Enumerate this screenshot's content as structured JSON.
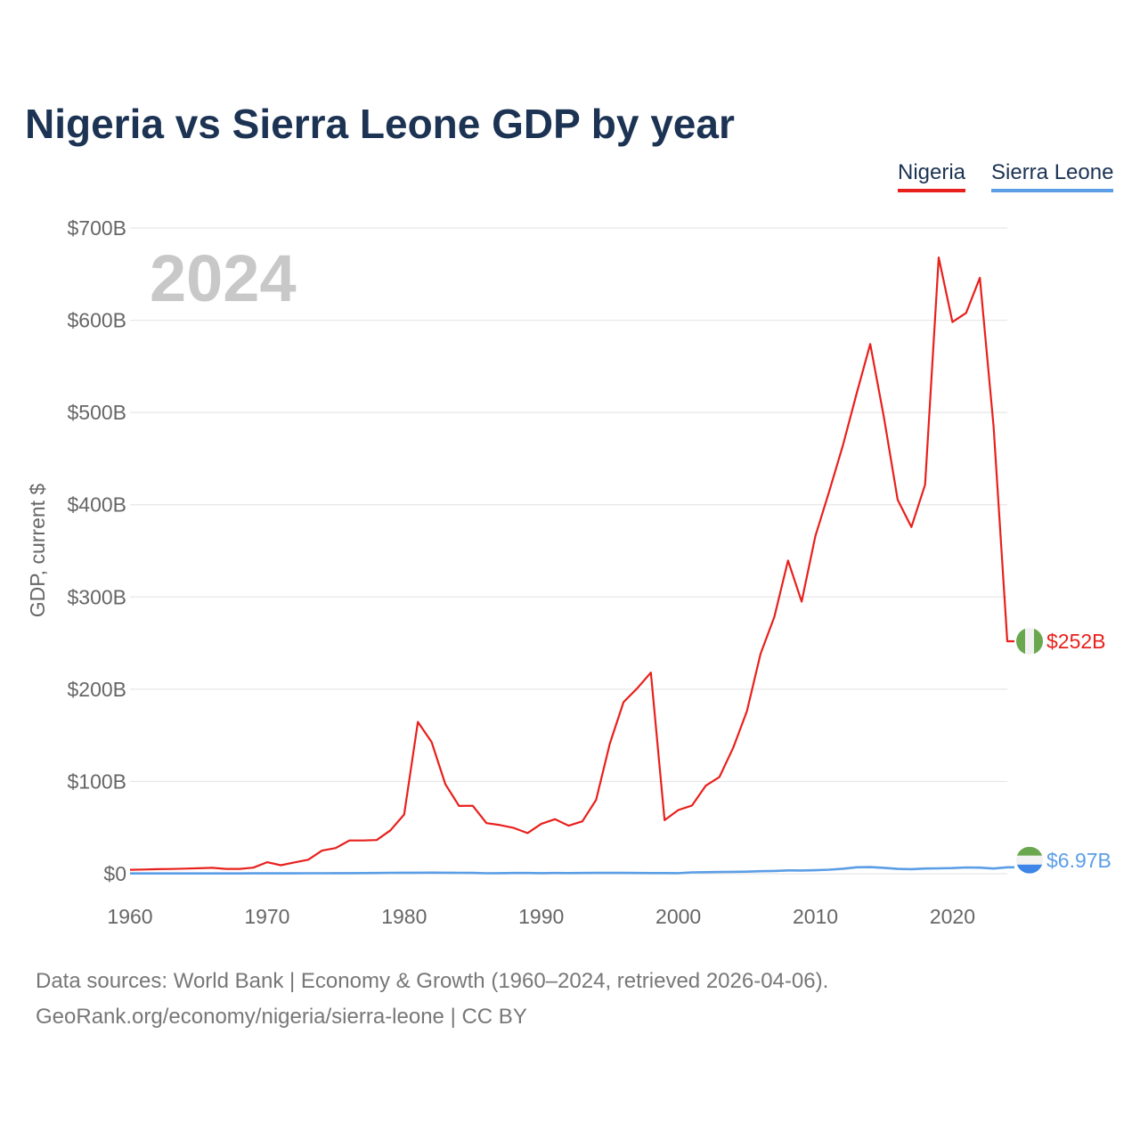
{
  "title": "Nigeria vs Sierra Leone GDP by year",
  "legend": {
    "nigeria": "Nigeria",
    "sierra_leone": "Sierra Leone"
  },
  "year_watermark": "2024",
  "ylabel": "GDP, current $",
  "source": {
    "line1": "Data sources: World Bank | Economy & Growth (1960–2024, retrieved 2026-04-06).",
    "line2": "GeoRank.org/economy/nigeria/sierra-leone | CC BY"
  },
  "colors": {
    "nigeria": "#e8201c",
    "sierra_leone": "#5b9ee6",
    "title": "#1c3354",
    "axis_text": "#666666",
    "grid": "#e6e6e6"
  },
  "chart_data": {
    "type": "line",
    "title": "Nigeria vs Sierra Leone GDP by year",
    "xlabel": "",
    "ylabel": "GDP, current $",
    "xlim": [
      1960,
      2024
    ],
    "ylim": [
      0,
      700
    ],
    "y_unit": "billions USD",
    "x_ticks": [
      1960,
      1970,
      1980,
      1990,
      2000,
      2010,
      2020
    ],
    "y_ticks": [
      0,
      100,
      200,
      300,
      400,
      500,
      600,
      700
    ],
    "y_tick_labels": [
      "$0",
      "$100B",
      "$200B",
      "$300B",
      "$400B",
      "$500B",
      "$600B",
      "$700B"
    ],
    "x": [
      1960,
      1961,
      1962,
      1963,
      1964,
      1965,
      1966,
      1967,
      1968,
      1969,
      1970,
      1971,
      1972,
      1973,
      1974,
      1975,
      1976,
      1977,
      1978,
      1979,
      1980,
      1981,
      1982,
      1983,
      1984,
      1985,
      1986,
      1987,
      1988,
      1989,
      1990,
      1991,
      1992,
      1993,
      1994,
      1995,
      1996,
      1997,
      1998,
      1999,
      2000,
      2001,
      2002,
      2003,
      2004,
      2005,
      2006,
      2007,
      2008,
      2009,
      2010,
      2011,
      2012,
      2013,
      2014,
      2015,
      2016,
      2017,
      2018,
      2019,
      2020,
      2021,
      2022,
      2023,
      2024
    ],
    "series": [
      {
        "name": "Nigeria",
        "color": "#e8201c",
        "end_label": "$252B",
        "values": [
          4.2,
          4.5,
          4.9,
          5.1,
          5.5,
          5.9,
          6.4,
          5.2,
          5.2,
          6.6,
          12.5,
          9.2,
          12.3,
          15.2,
          25.0,
          27.8,
          36.0,
          36.0,
          36.5,
          47.0,
          64.2,
          164.5,
          142.8,
          97.1,
          73.5,
          73.7,
          54.8,
          52.7,
          49.6,
          44.0,
          54.0,
          59.1,
          52.0,
          56.8,
          80.0,
          141.0,
          186.0,
          201.0,
          218.0,
          58.0,
          69.0,
          74.0,
          95.4,
          104.9,
          136.4,
          176.1,
          238.5,
          278.3,
          339.5,
          295.0,
          366.0,
          414.0,
          463.9,
          520.1,
          574.2,
          494.6,
          405.4,
          375.8,
          421.7,
          668.0,
          598.0,
          608.0,
          646.0,
          485.0,
          252.0
        ]
      },
      {
        "name": "Sierra Leone",
        "color": "#5b9ee6",
        "end_label": "$6.97B",
        "values": [
          0.3,
          0.3,
          0.3,
          0.3,
          0.3,
          0.3,
          0.3,
          0.3,
          0.3,
          0.4,
          0.4,
          0.4,
          0.4,
          0.5,
          0.5,
          0.6,
          0.6,
          0.7,
          0.8,
          1.0,
          1.1,
          1.1,
          1.2,
          1.1,
          1.0,
          0.9,
          0.5,
          0.6,
          0.8,
          0.8,
          0.6,
          0.8,
          0.7,
          0.8,
          0.9,
          0.9,
          0.9,
          0.8,
          0.7,
          0.7,
          0.6,
          1.4,
          1.6,
          1.8,
          2.0,
          2.2,
          2.7,
          3.0,
          3.6,
          3.5,
          3.8,
          4.3,
          5.4,
          7.0,
          7.1,
          6.4,
          5.2,
          4.9,
          5.6,
          5.8,
          6.1,
          6.8,
          6.6,
          5.6,
          6.97
        ]
      }
    ]
  }
}
